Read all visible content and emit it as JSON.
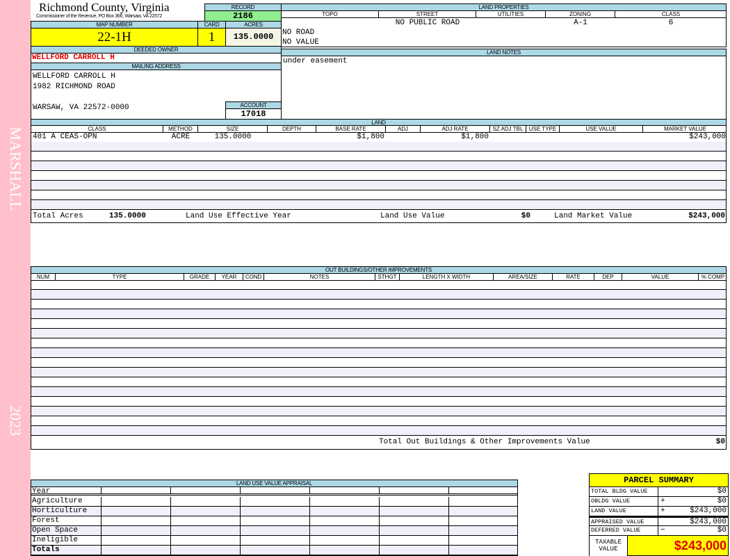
{
  "sidebar": {
    "name": "MARSHALL",
    "year": "2023",
    "color": "#ffc0cb"
  },
  "header": {
    "title": "Richmond County, Virginia",
    "subtitle": "Commissioner of the Revenue, PO Box 366, Warsaw, VA 22572",
    "record_label": "RECORD",
    "record": "2186"
  },
  "parcel": {
    "map_label": "MAP NUMBER",
    "map": "22-1H",
    "card_label": "CARD",
    "card": "1",
    "acres_label": "ACRES",
    "acres": "135.0000"
  },
  "owner": {
    "label": "DEEDED OWNER",
    "name": "WELLFORD CARROLL H",
    "mail_label": "MAILING ADDRESS",
    "address": [
      "WELLFORD CARROLL H",
      "1982 RICHMOND ROAD",
      "",
      "WARSAW, VA 22572-0000"
    ],
    "account_label": "ACCOUNT",
    "account": "17018"
  },
  "land_properties": {
    "label": "LAND PROPERTIES",
    "headers": [
      "TOPO",
      "STREET",
      "UTILITIES",
      "ZONING",
      "CLASS"
    ],
    "street": "NO PUBLIC ROAD",
    "zoning": "A-1",
    "class": "6",
    "topo": [
      "NO ROAD",
      "NO VALUE"
    ]
  },
  "land_notes": {
    "label": "LAND NOTES",
    "text": "under easement"
  },
  "land": {
    "label": "LAND",
    "headers": [
      "CLASS",
      "METHOD",
      "SIZE",
      "DEPTH",
      "BASE RATE",
      "ADJ",
      "ADJ RATE",
      "SZ ADJ TBL",
      "USE TYPE",
      "USE VALUE",
      "MARKET VALUE"
    ],
    "rows": [
      [
        "401 A CEAS-OPN",
        "ACRE",
        "135.0000",
        "",
        "$1,800",
        "",
        "$1,800",
        "",
        "",
        "",
        "$243,000"
      ]
    ],
    "total_acres_label": "Total Acres",
    "total_acres": "135.0000",
    "effective_year_label": "Land Use Effective Year",
    "effective_year": "",
    "use_value_label": "Land Use Value",
    "use_value": "$0",
    "market_value_label": "Land Market Value",
    "market_value": "$243,000"
  },
  "outbuildings": {
    "label": "OUT BUILDINGS/OTHER IMPROVEMENTS",
    "headers": [
      "NUM",
      "TYPE",
      "GRADE",
      "YEAR",
      "COND",
      "NOTES",
      "STHGT",
      "LENGTH X WIDTH",
      "AREA/SIZE",
      "RATE",
      "DEP",
      "VALUE",
      "% COMP"
    ],
    "total_label": "Total Out Buildings & Other Improvements Value",
    "total": "$0"
  },
  "luv": {
    "label": "LAND USE VALUE APPRAISAL",
    "rows": [
      "Year",
      "Agriculture",
      "Horticulture",
      "Forest",
      "Open Space",
      "Ineligible",
      "Totals"
    ]
  },
  "summary": {
    "title": "PARCEL SUMMARY",
    "rows": [
      {
        "label": "TOTAL BLDG VALUE",
        "op": "",
        "value": "$0"
      },
      {
        "label": "OBLDG VALUE",
        "op": "+",
        "value": "$0"
      },
      {
        "label": "LAND VALUE",
        "op": "+",
        "value": "$243,000"
      },
      {
        "label": "APPRAISED VALUE",
        "op": "",
        "value": "$243,000"
      },
      {
        "label": "DEFERRED VALUE",
        "op": "−",
        "value": "$0"
      }
    ],
    "taxable_label": "TAXABLE VALUE",
    "taxable": "$243,000"
  }
}
